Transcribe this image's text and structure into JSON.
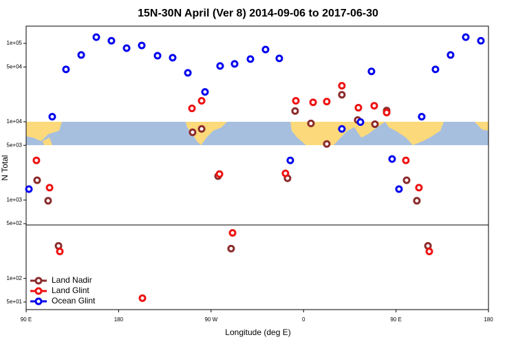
{
  "chart_data": {
    "type": "scatter",
    "title": "15N-30N April (Ver 8)   2014-09-06 to 2017-06-30",
    "x_label": "Longitude (deg E)",
    "y_label": "N Total",
    "y_log": true,
    "xlim": [
      90,
      540
    ],
    "xticks": [
      {
        "value": 90,
        "label": "90 E"
      },
      180,
      {
        "value": 270,
        "label": "90 W"
      },
      {
        "value": 360,
        "label": "0"
      },
      {
        "value": 450,
        "label": "90 E"
      },
      {
        "value": 540,
        "label": "180"
      }
    ],
    "ylim": [
      40,
      166000
    ],
    "yticks": [
      {
        "value": 100000,
        "label": "1e+05"
      },
      {
        "value": 50000,
        "label": "5e+04"
      },
      {
        "value": 10000,
        "label": "1e+04"
      },
      {
        "value": 5000,
        "label": "5e+03"
      },
      {
        "value": 1000,
        "label": "1e+03"
      },
      {
        "value": 500,
        "label": "5e+02"
      },
      {
        "value": 100,
        "label": "1e+02"
      },
      {
        "value": 50,
        "label": "5e+01"
      }
    ],
    "legend": "bottom-left",
    "series": [
      {
        "name": "Land Nadir",
        "color": "#8b2a2a",
        "x": [
          100.7,
          111.4,
          121.5,
          252,
          260.8,
          276.8,
          289.5,
          344.4,
          351.8,
          367.2,
          382.6,
          397.3,
          412.7,
          429.5,
          440.9,
          460.3,
          470.3,
          481.1
        ],
        "values": [
          1790,
          980,
          260,
          7330,
          8090,
          2020,
          240,
          1900,
          13700,
          9510,
          5200,
          22100,
          10500,
          9310,
          13900,
          1790,
          980,
          260
        ]
      },
      {
        "name": "Land Glint",
        "color": "#ee1111",
        "x": [
          100,
          112.8,
          122.8,
          203.2,
          251.4,
          260.8,
          278.2,
          290.9,
          342.4,
          352.5,
          369.3,
          382.6,
          397.3,
          413.4,
          428.8,
          440.9,
          459.6,
          472.3,
          482.4
        ],
        "values": [
          3210,
          1440,
          221,
          56,
          14800,
          18500,
          2150,
          381,
          2190,
          18500,
          17700,
          18100,
          28800,
          15100,
          16000,
          13100,
          3210,
          1440,
          221
        ]
      },
      {
        "name": "Ocean Glint",
        "color": "#0000ee",
        "x": [
          92.7,
          115.4,
          128.8,
          143.6,
          158.3,
          173,
          187.8,
          202.5,
          217.9,
          232.6,
          247.4,
          264.1,
          278.8,
          292.9,
          308.3,
          323,
          336.4,
          347.1,
          397.3,
          415.4,
          426.1,
          446.2,
          452.9,
          475,
          488.4,
          503.1,
          517.9,
          532.6
        ],
        "values": [
          1380,
          11600,
          46600,
          71100,
          120000,
          108000,
          86900,
          94100,
          69600,
          65600,
          42100,
          24000,
          51500,
          54700,
          63000,
          83400,
          64300,
          3210,
          8090,
          9900,
          43900,
          3340,
          1380,
          11600,
          46600,
          71100,
          120000,
          108000
        ]
      }
    ]
  }
}
